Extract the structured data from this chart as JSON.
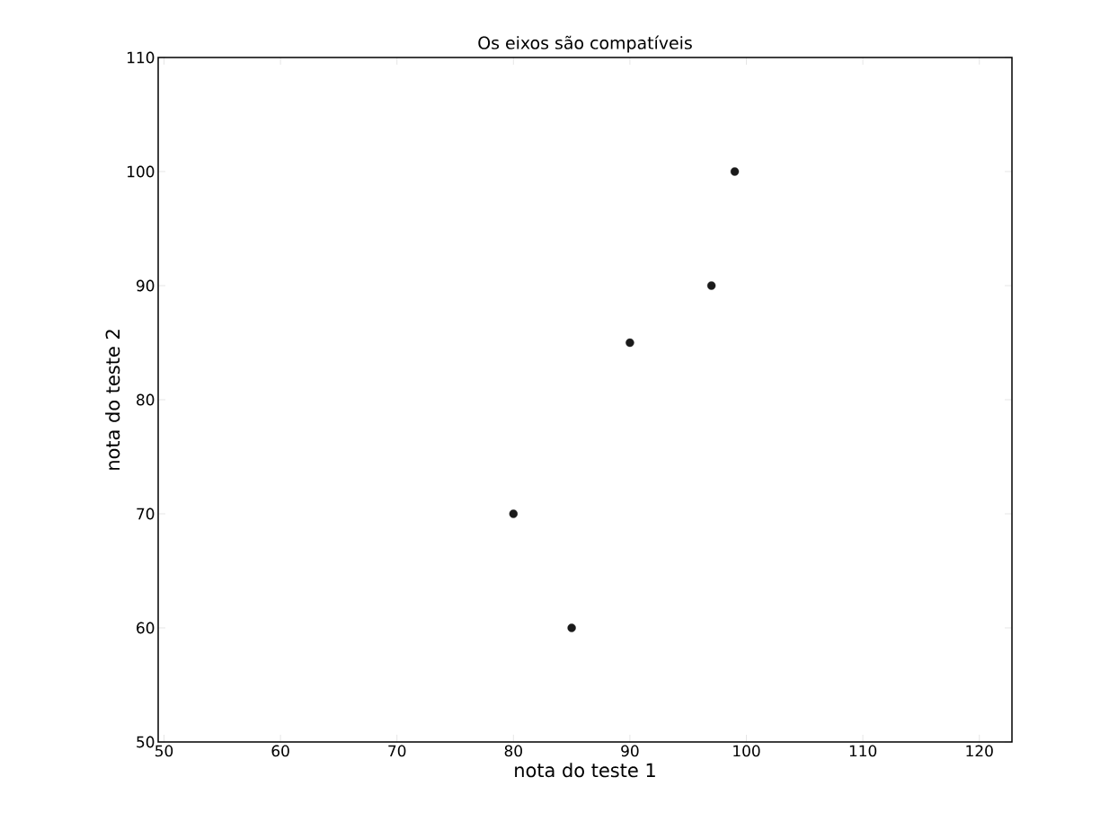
{
  "chart_data": {
    "type": "scatter",
    "title": "Os eixos são compatíveis",
    "xlabel": "nota do teste 1",
    "ylabel": "nota do teste 2",
    "x": [
      99,
      97,
      90,
      80,
      85
    ],
    "series": [
      {
        "color": "#1a1a1a",
        "values": [
          100,
          90,
          85,
          70,
          60
        ]
      }
    ],
    "xlim": [
      49.5,
      122.8
    ],
    "ylim": [
      50,
      110
    ],
    "xticks": [
      50,
      60,
      70,
      80,
      90,
      100,
      110,
      120
    ],
    "yticks": [
      50,
      60,
      70,
      80,
      90,
      100,
      110
    ],
    "marker": "circle"
  }
}
